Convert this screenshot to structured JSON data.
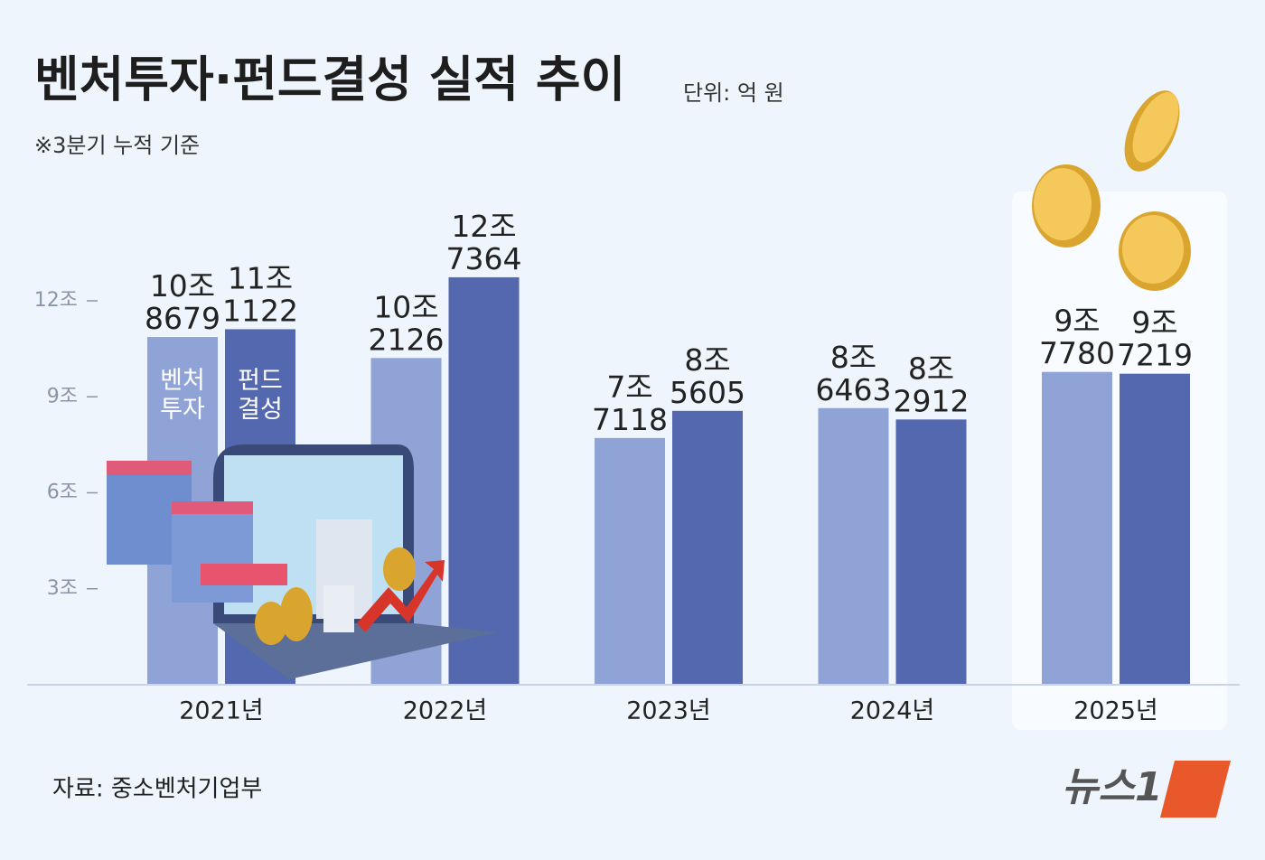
{
  "chart_data": {
    "type": "bar",
    "title": "벤처투자·펀드결성 실적 추이",
    "unit": "단위: 억 원",
    "note": "※3분기 누적 기준",
    "source": "자료: 중소벤처기업부",
    "logo": "뉴스1",
    "categories": [
      "2021년",
      "2022년",
      "2023년",
      "2024년",
      "2025년"
    ],
    "series": [
      {
        "name": "벤처투자",
        "color": "#8fa3d6",
        "values": [
          108679,
          102126,
          77118,
          86463,
          97780
        ],
        "value_labels": [
          "10조 8679",
          "10조 2126",
          "7조 7118",
          "8조 6463",
          "9조 7780"
        ]
      },
      {
        "name": "펀드결성",
        "color": "#5468b0",
        "values": [
          111122,
          127364,
          85605,
          82912,
          97219
        ],
        "value_labels": [
          "11조 1122",
          "12조 7364",
          "8조 5605",
          "8조 2912",
          "9조 7219"
        ]
      }
    ],
    "ylim": [
      0,
      140000
    ],
    "yticks": [
      {
        "value": 30000,
        "label": "3조"
      },
      {
        "value": 60000,
        "label": "6조"
      },
      {
        "value": 90000,
        "label": "9조"
      },
      {
        "value": 120000,
        "label": "12조"
      }
    ]
  }
}
